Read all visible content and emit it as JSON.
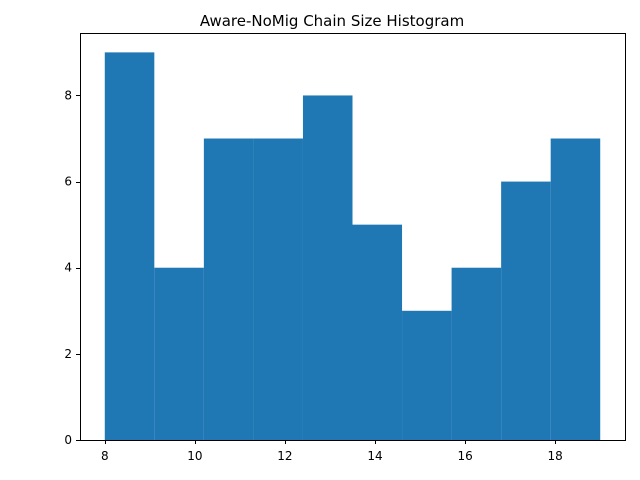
{
  "chart_data": {
    "type": "bar",
    "title": "Aware-NoMig Chain Size Histogram",
    "xlabel": "",
    "ylabel": "",
    "bin_edges": [
      8,
      9.1,
      10.2,
      11.3,
      12.4,
      13.5,
      14.6,
      15.7,
      16.8,
      17.9,
      19
    ],
    "values": [
      9,
      4,
      7,
      7,
      8,
      5,
      3,
      4,
      6,
      7
    ],
    "xlim": [
      7.45,
      19.55
    ],
    "ylim": [
      0,
      9.45
    ],
    "xticks": [
      8,
      10,
      12,
      14,
      16,
      18
    ],
    "yticks": [
      0,
      2,
      4,
      6,
      8
    ],
    "grid": false,
    "bar_color": "#1f77b4"
  }
}
